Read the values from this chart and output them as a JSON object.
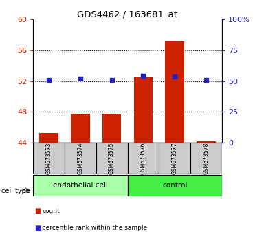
{
  "title": "GDS4462 / 163681_at",
  "samples": [
    "GSM673573",
    "GSM673574",
    "GSM673575",
    "GSM673576",
    "GSM673577",
    "GSM673578"
  ],
  "bar_values": [
    45.3,
    47.8,
    47.8,
    52.5,
    57.2,
    44.15
  ],
  "pct_right": [
    51.0,
    52.0,
    51.0,
    54.5,
    54.0,
    51.0
  ],
  "bar_color": "#cc2200",
  "dot_color": "#2222cc",
  "ylim_left": [
    44,
    60
  ],
  "yticks_left": [
    44,
    48,
    52,
    56,
    60
  ],
  "ylim_right": [
    0,
    100
  ],
  "yticks_right": [
    0,
    25,
    50,
    75,
    100
  ],
  "yticklabels_right": [
    "0",
    "25",
    "50",
    "75",
    "100%"
  ],
  "groups": [
    {
      "label": "endothelial cell",
      "indices": [
        0,
        1,
        2
      ],
      "color": "#aaffaa"
    },
    {
      "label": "control",
      "indices": [
        3,
        4,
        5
      ],
      "color": "#44ee44"
    }
  ],
  "cell_type_label": "cell type",
  "legend_count_label": "count",
  "legend_percentile_label": "percentile rank within the sample",
  "bg_color": "#ffffff",
  "tick_color_left": "#cc2200",
  "tick_color_right": "#2222cc",
  "sample_box_color": "#cccccc",
  "bar_bottom": 44,
  "bar_width": 0.6
}
